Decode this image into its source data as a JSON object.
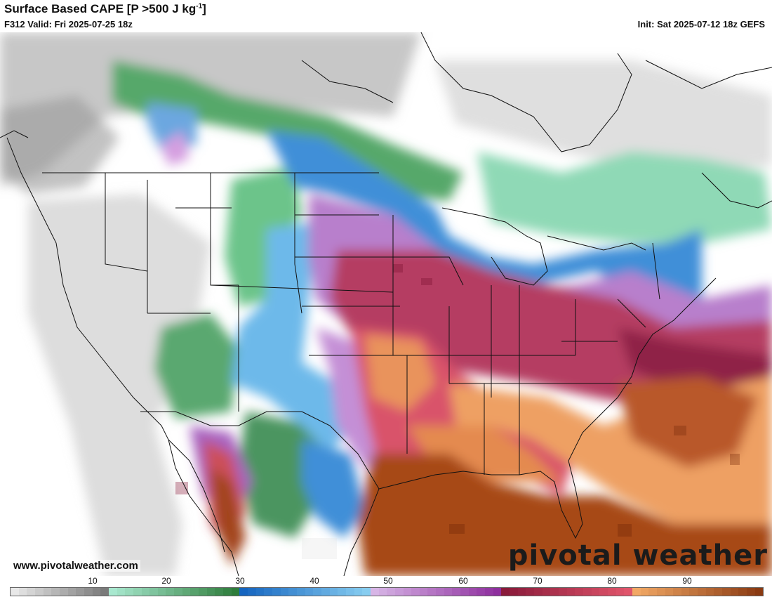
{
  "header": {
    "title_main": "Surface Based CAPE [P >500 J kg",
    "title_sup": "-1",
    "title_end": "]",
    "valid": "F312 Valid: Fri 2025-07-25 18z",
    "init": "Init: Sat 2025-07-12 18z GEFS"
  },
  "footer": {
    "url": "www.pivotalweather.com",
    "brand": "pivotal weather"
  },
  "legend": {
    "ticks": [
      "10",
      "20",
      "30",
      "40",
      "50",
      "60",
      "70",
      "80",
      "90"
    ],
    "colors": {
      "gray_light": "#e8e8e8",
      "gray_dark": "#7a7a7a",
      "green_light": "#a8e8cf",
      "green_dark": "#2e7d3b",
      "blue_dark": "#1565c0",
      "blue_light": "#87cdf0",
      "purple_light": "#d7b5e6",
      "purple_dark": "#8e2f9e",
      "red_dark": "#8a1a3a",
      "red_light": "#e0556b",
      "orange_light": "#f2a865",
      "brown_dark": "#8a3a12"
    }
  }
}
